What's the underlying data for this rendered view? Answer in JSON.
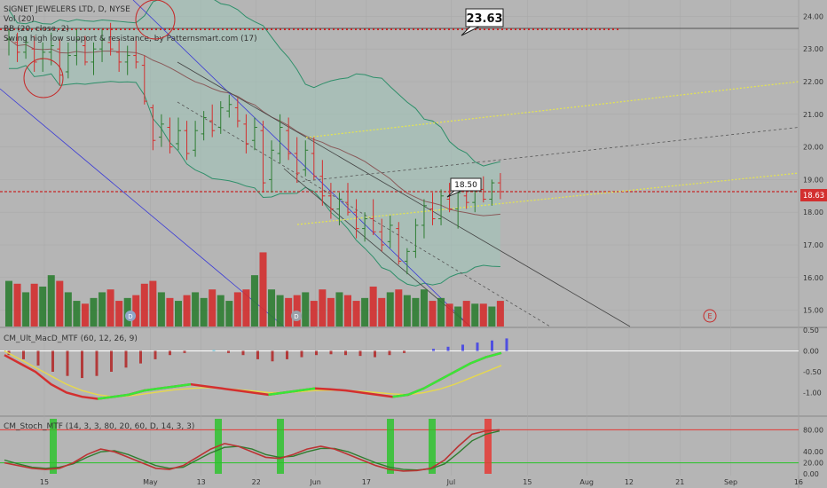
{
  "header": {
    "title": "SIGNET JEWELERS LTD, D, NYSE",
    "vol": "Vol (20)",
    "bb": "BB (20, close, 2)",
    "swing": "Swing high low support & resistance, by Patternsmart.com (17)"
  },
  "panels": {
    "macd_title": "CM_Ult_MacD_MTF (60, 12, 26, 9)",
    "stoch_title": "CM_Stoch_MTF (14, 3, 3, 80, 20, 60, D, 14, 3, 3)"
  },
  "annotations": {
    "resistance": "23.63",
    "callout": "18.50",
    "last_price": "18.63",
    "earnings_mark": "E",
    "dividend_mark": "D"
  },
  "colors": {
    "bg": "#b5b5b5",
    "up": "#2e7d32",
    "down": "#d32f2f",
    "bb_fill": "#9fc4b8",
    "bb_line": "#2f8f6a",
    "sma": "#8a5a5a",
    "resistance": "#c62828",
    "channel_yellow": "#e6e64c",
    "macd_green": "#39e639",
    "macd_yellow": "#e6d84c",
    "stoch_red": "#e53935",
    "stoch_green": "#27c427"
  },
  "chart_data": [
    {
      "type": "candlestick",
      "title": "SIGNET JEWELERS LTD, D, NYSE",
      "ylim": [
        14.5,
        24.5
      ],
      "y_ticks": [
        "24.00",
        "23.00",
        "22.00",
        "21.00",
        "20.00",
        "19.00",
        "18.00",
        "17.00",
        "16.00",
        "15.00"
      ],
      "x_ticks": [
        "15",
        "May",
        "13",
        "22",
        "Jun",
        "17",
        "Jul",
        "15",
        "Aug",
        "12",
        "21",
        "Sep",
        "16"
      ],
      "candles": [
        [
          23.3,
          23.6,
          22.8,
          23.3
        ],
        [
          23.2,
          23.5,
          22.6,
          22.9
        ],
        [
          22.9,
          23.4,
          22.7,
          23.2
        ],
        [
          23.0,
          23.4,
          22.3,
          22.6
        ],
        [
          22.7,
          23.2,
          22.3,
          22.9
        ],
        [
          22.9,
          23.5,
          22.5,
          23.1
        ],
        [
          23.0,
          23.3,
          21.9,
          22.2
        ],
        [
          22.3,
          23.2,
          22.1,
          22.8
        ],
        [
          22.8,
          23.6,
          22.5,
          23.3
        ],
        [
          23.1,
          23.4,
          22.5,
          22.6
        ],
        [
          22.6,
          23.2,
          22.2,
          23.0
        ],
        [
          23.0,
          23.6,
          22.6,
          23.3
        ],
        [
          23.2,
          23.8,
          22.8,
          23.0
        ],
        [
          22.9,
          23.3,
          22.3,
          22.6
        ],
        [
          22.6,
          23.1,
          22.2,
          22.8
        ],
        [
          22.8,
          23.4,
          22.4,
          22.6
        ],
        [
          22.5,
          22.8,
          21.3,
          21.4
        ],
        [
          21.2,
          21.3,
          19.9,
          20.2
        ],
        [
          20.3,
          21.0,
          20.0,
          20.7
        ],
        [
          20.6,
          20.9,
          19.8,
          20.0
        ],
        [
          20.1,
          20.9,
          19.9,
          20.5
        ],
        [
          20.5,
          20.8,
          19.6,
          19.8
        ],
        [
          19.9,
          20.8,
          19.7,
          20.5
        ],
        [
          20.4,
          21.1,
          20.2,
          20.9
        ],
        [
          20.8,
          21.3,
          20.3,
          20.5
        ],
        [
          20.6,
          21.4,
          20.4,
          21.2
        ],
        [
          21.1,
          21.6,
          20.9,
          21.3
        ],
        [
          21.2,
          21.5,
          20.6,
          20.8
        ],
        [
          20.7,
          21.0,
          19.8,
          20.1
        ],
        [
          20.2,
          20.9,
          19.9,
          20.6
        ],
        [
          20.5,
          20.8,
          18.6,
          18.9
        ],
        [
          19.0,
          20.2,
          18.6,
          19.9
        ],
        [
          19.8,
          21.0,
          19.5,
          20.6
        ],
        [
          20.5,
          20.9,
          19.6,
          19.8
        ],
        [
          19.8,
          20.3,
          18.9,
          19.2
        ],
        [
          19.3,
          20.2,
          19.1,
          19.9
        ],
        [
          19.8,
          20.3,
          19.0,
          19.1
        ],
        [
          19.1,
          19.6,
          18.2,
          18.5
        ],
        [
          18.5,
          18.9,
          17.8,
          18.1
        ],
        [
          18.1,
          18.6,
          17.6,
          18.4
        ],
        [
          18.3,
          18.9,
          17.9,
          18.0
        ],
        [
          18.0,
          18.4,
          17.2,
          17.5
        ],
        [
          17.5,
          18.0,
          17.1,
          17.8
        ],
        [
          17.8,
          18.4,
          17.3,
          17.4
        ],
        [
          17.4,
          17.8,
          16.8,
          17.0
        ],
        [
          17.1,
          17.9,
          16.9,
          17.6
        ],
        [
          17.5,
          17.7,
          16.4,
          16.5
        ],
        [
          16.5,
          16.9,
          16.1,
          16.8
        ],
        [
          16.8,
          17.8,
          16.6,
          17.6
        ],
        [
          17.6,
          18.4,
          17.2,
          18.2
        ],
        [
          18.1,
          18.6,
          17.6,
          17.8
        ],
        [
          17.8,
          18.7,
          17.6,
          18.5
        ],
        [
          18.4,
          18.9,
          18.0,
          18.1
        ],
        [
          18.1,
          18.7,
          17.5,
          18.6
        ],
        [
          18.5,
          18.9,
          18.1,
          18.3
        ],
        [
          18.3,
          18.9,
          18.0,
          18.8
        ],
        [
          18.7,
          19.1,
          18.3,
          18.4
        ],
        [
          18.4,
          19.0,
          18.2,
          18.9
        ],
        [
          18.9,
          19.2,
          18.4,
          18.63
        ]
      ]
    },
    {
      "type": "bar",
      "title": "Vol (20)",
      "values": [
        1.6,
        1.5,
        1.2,
        1.5,
        1.4,
        1.8,
        1.6,
        1.2,
        0.9,
        0.8,
        1.0,
        1.2,
        1.3,
        0.9,
        1.0,
        1.1,
        1.5,
        1.6,
        1.2,
        1.0,
        0.9,
        1.1,
        1.2,
        1.0,
        1.3,
        1.1,
        0.9,
        1.2,
        1.3,
        1.8,
        2.6,
        1.3,
        1.1,
        1.0,
        1.1,
        1.2,
        0.9,
        1.3,
        1.0,
        1.2,
        1.1,
        0.9,
        1.0,
        1.4,
        1.0,
        1.2,
        1.3,
        1.1,
        1.0,
        1.3,
        0.9,
        1.0,
        0.8,
        0.7,
        0.9,
        0.8,
        0.8,
        0.7,
        0.9
      ]
    },
    {
      "type": "line",
      "title": "CM_Ult_MacD_MTF (60, 12, 26, 9)",
      "ylim": [
        -1.5,
        0.5
      ],
      "y_ticks": [
        "0.50",
        "0.00",
        "-0.50",
        "-1.00"
      ],
      "series": [
        {
          "values": [
            -0.1,
            -0.3,
            -0.5,
            -0.8,
            -1.0,
            -1.1,
            -1.15,
            -1.1,
            -1.05,
            -0.95,
            -0.9,
            -0.85,
            -0.8,
            -0.85,
            -0.9,
            -0.95,
            -1.0,
            -1.05,
            -1.0,
            -0.95,
            -0.9,
            -0.92,
            -0.95,
            -1.0,
            -1.05,
            -1.1,
            -1.05,
            -0.9,
            -0.7,
            -0.5,
            -0.3,
            -0.15,
            -0.05
          ]
        },
        {
          "values": [
            0.0,
            -0.2,
            -0.4,
            -0.6,
            -0.8,
            -0.95,
            -1.05,
            -1.1,
            -1.08,
            -1.03,
            -0.98,
            -0.93,
            -0.9,
            -0.88,
            -0.9,
            -0.93,
            -0.96,
            -1.0,
            -1.0,
            -0.98,
            -0.95,
            -0.94,
            -0.95,
            -0.97,
            -1.0,
            -1.03,
            -1.05,
            -1.0,
            -0.92,
            -0.8,
            -0.65,
            -0.5,
            -0.35
          ]
        }
      ],
      "histogram": [
        -0.1,
        -0.2,
        -0.35,
        -0.5,
        -0.6,
        -0.65,
        -0.6,
        -0.5,
        -0.4,
        -0.3,
        -0.2,
        -0.1,
        -0.05,
        0.0,
        0.02,
        -0.05,
        -0.1,
        -0.2,
        -0.25,
        -0.2,
        -0.15,
        -0.1,
        -0.08,
        -0.1,
        -0.12,
        -0.15,
        -0.1,
        -0.05,
        0.0,
        0.05,
        0.1,
        0.15,
        0.2,
        0.25,
        0.3
      ]
    },
    {
      "type": "line",
      "title": "CM_Stoch_MTF (14, 3, 3, 80, 20, 60, D, 14, 3, 3)",
      "ylim": [
        0,
        100
      ],
      "y_ticks": [
        "80.00",
        "40.00",
        "20.00",
        "0.00"
      ],
      "series": [
        {
          "values": [
            20,
            15,
            10,
            8,
            10,
            20,
            35,
            45,
            40,
            30,
            20,
            10,
            8,
            15,
            30,
            45,
            55,
            50,
            40,
            30,
            28,
            35,
            45,
            50,
            45,
            35,
            25,
            15,
            8,
            5,
            6,
            10,
            25,
            50,
            72,
            78,
            80
          ]
        },
        {
          "values": [
            25,
            18,
            12,
            10,
            12,
            18,
            30,
            40,
            42,
            35,
            25,
            15,
            10,
            12,
            25,
            38,
            48,
            50,
            45,
            35,
            30,
            32,
            40,
            46,
            46,
            40,
            30,
            20,
            12,
            8,
            7,
            9,
            18,
            38,
            60,
            72,
            78
          ]
        }
      ]
    }
  ]
}
